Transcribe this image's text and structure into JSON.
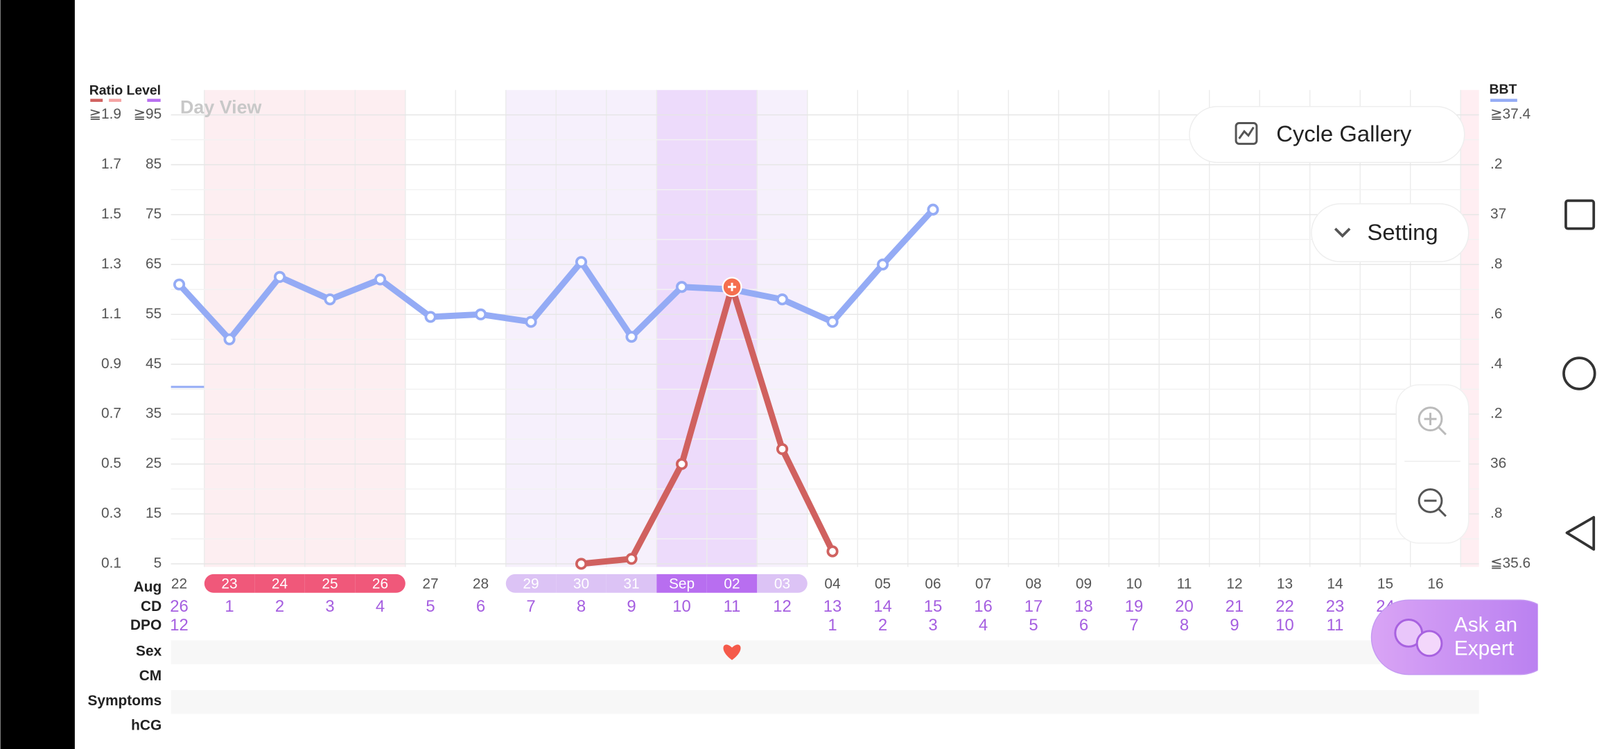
{
  "ui": {
    "day_view": "Day View",
    "cycle_gallery": "Cycle Gallery",
    "setting": "Setting",
    "ask_expert": [
      "Ask an",
      "Expert"
    ]
  },
  "chart_data": {
    "type": "line",
    "level_label": "Level",
    "month_label": "Aug",
    "categories": [
      "22",
      "23",
      "24",
      "25",
      "26",
      "27",
      "28",
      "29",
      "30",
      "31",
      "Sep",
      "02",
      "03",
      "04",
      "05",
      "06",
      "07",
      "08",
      "09",
      "10",
      "11",
      "12",
      "13",
      "14",
      "15",
      "16"
    ],
    "day_colors": [
      null,
      "#f0587a",
      "#f0587a",
      "#f0587a",
      "#f0587a",
      null,
      null,
      "#dcc3f5",
      "#dcc3f5",
      "#dcc3f5",
      "#b86ef0",
      "#b86ef0",
      "#dcc3f5",
      null,
      null,
      null,
      null,
      null,
      null,
      null,
      null,
      null,
      null,
      null,
      null,
      null
    ],
    "row_labels": [
      "CD",
      "DPO",
      "Sex",
      "CM",
      "Symptoms",
      "hCG"
    ],
    "cd": [
      26,
      1,
      2,
      3,
      4,
      5,
      6,
      7,
      8,
      9,
      10,
      11,
      12,
      13,
      14,
      15,
      16,
      17,
      18,
      19,
      20,
      21,
      22,
      23,
      24,
      null
    ],
    "dpo": [
      12,
      null,
      null,
      null,
      null,
      null,
      null,
      null,
      null,
      null,
      null,
      null,
      null,
      1,
      2,
      3,
      4,
      5,
      6,
      7,
      8,
      9,
      10,
      11,
      null,
      null
    ],
    "sex": [
      false,
      false,
      false,
      false,
      false,
      false,
      false,
      false,
      false,
      false,
      false,
      true,
      false,
      false,
      false,
      false,
      false,
      false,
      false,
      false,
      false,
      false,
      false,
      false,
      false,
      false
    ],
    "ylim": [
      0.1,
      1.9
    ],
    "yticks": [
      {
        "value": 1.9,
        "label": "≧1.9"
      },
      1.7,
      1.5,
      1.3,
      1.1,
      0.9,
      0.7,
      0.5,
      0.3,
      0.1
    ],
    "level_lim": [
      5,
      95
    ],
    "level_ticks": [
      {
        "value": 95,
        "label": "≧95"
      },
      85,
      75,
      65,
      55,
      45,
      35,
      25,
      15,
      5
    ],
    "y2lim": [
      35.6,
      37.4
    ],
    "y2ticks": [
      {
        "value": 37.4,
        "label": "≧37.4"
      },
      {
        "value": 37.2,
        "label": ".2"
      },
      37,
      {
        "value": 36.8,
        "label": ".8"
      },
      {
        "value": 36.6,
        "label": ".6"
      },
      {
        "value": 36.4,
        "label": ".4"
      },
      {
        "value": 36.2,
        "label": ".2"
      },
      36,
      {
        "value": 35.8,
        "label": ".8"
      },
      {
        "value": 35.6,
        "label": "≦35.6"
      }
    ],
    "grid": true,
    "peak_color": "#f56f4f",
    "series": [
      {
        "name": "BBT",
        "color": "#94abf5",
        "axis": "y2",
        "values": [
          36.72,
          36.5,
          36.75,
          36.66,
          36.74,
          36.59,
          36.6,
          36.57,
          36.81,
          36.51,
          36.71,
          36.7,
          36.66,
          36.57,
          36.8,
          37.02,
          null,
          null,
          null,
          null,
          null,
          null,
          null,
          null,
          null,
          null
        ]
      },
      {
        "name": "Ratio",
        "color": "#d0615f",
        "axis": "y",
        "values": [
          null,
          null,
          null,
          null,
          null,
          null,
          null,
          null,
          0.1,
          0.12,
          0.5,
          1.21,
          0.56,
          0.15,
          null,
          null,
          null,
          null,
          null,
          null,
          null,
          null,
          null,
          null,
          null,
          null
        ]
      }
    ]
  }
}
